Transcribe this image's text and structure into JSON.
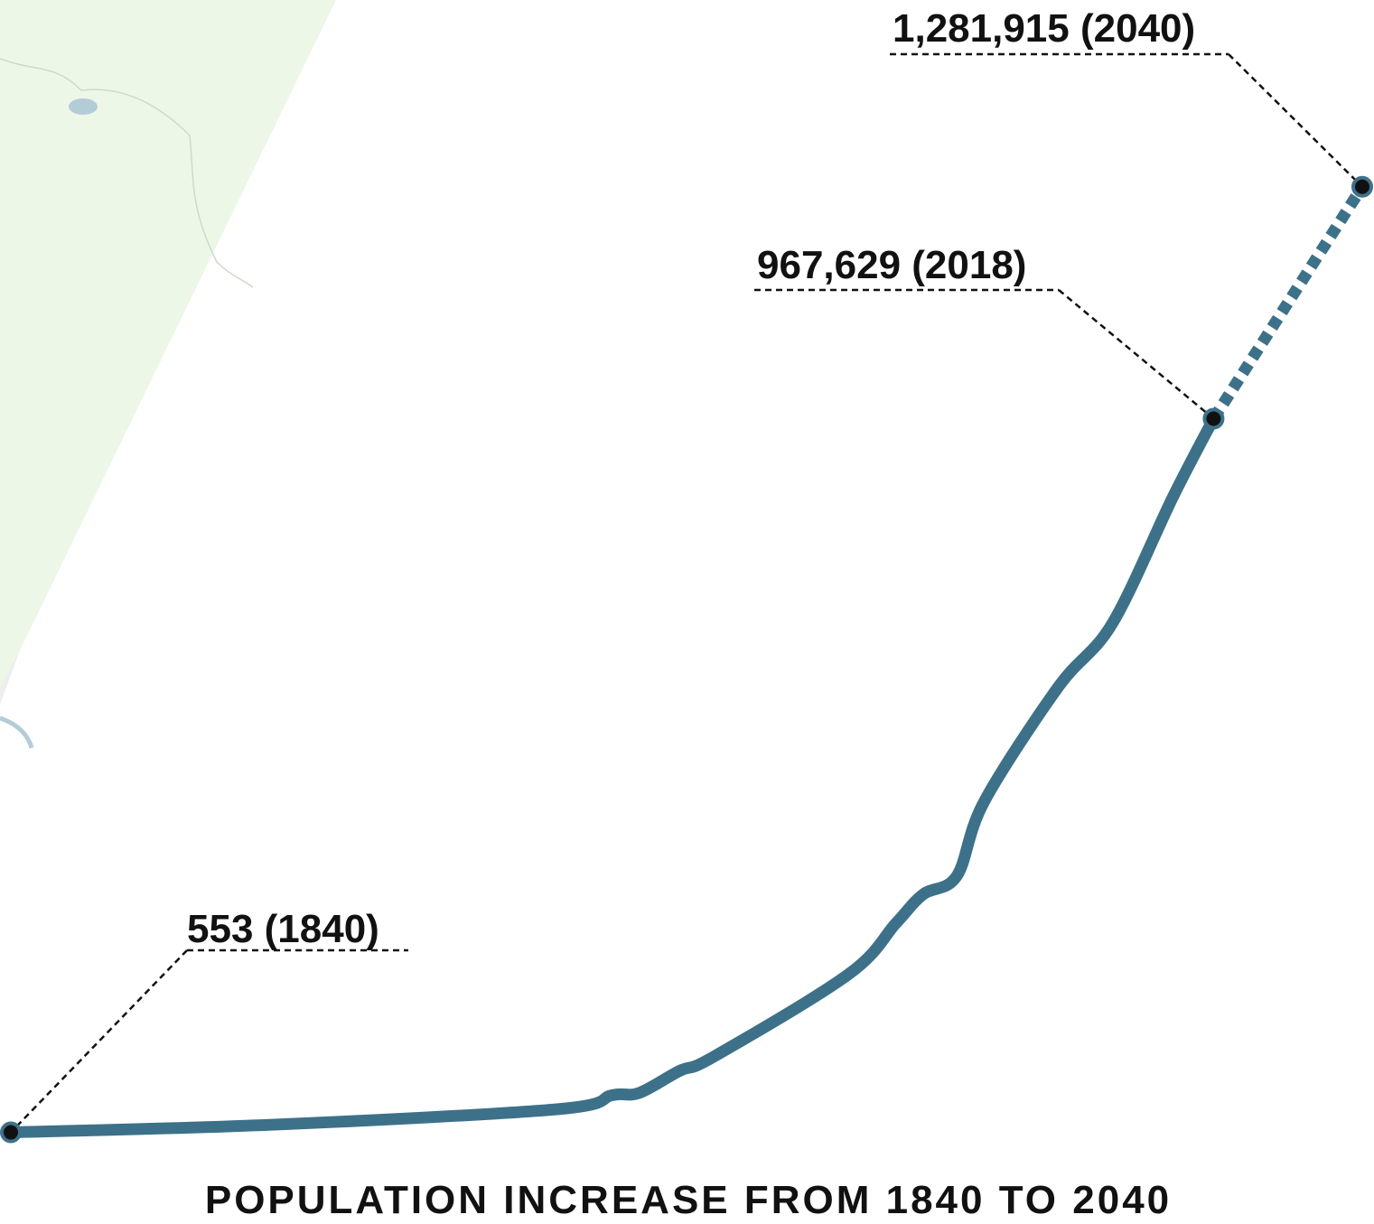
{
  "chart_data": {
    "type": "line",
    "title": "POPULATION INCREASE FROM 1840 TO 2040",
    "xlim": [
      1840,
      2040
    ],
    "ylim": [
      0,
      1300000
    ],
    "series": [
      {
        "color": "#3d7189",
        "style": "solid",
        "x": [
          1840,
          1879,
          1921,
          1929,
          1933,
          1939,
          1944,
          1964,
          1971,
          1975,
          1980,
          1984,
          1995,
          2003,
          2012,
          2018
        ],
        "values": [
          553,
          11000,
          32000,
          51000,
          54000,
          84000,
          103000,
          215000,
          284000,
          323000,
          348000,
          448000,
          604000,
          690000,
          862000,
          967629
        ]
      },
      {
        "color": "#3d7189",
        "style": "dashed",
        "x": [
          2018,
          2040
        ],
        "values": [
          967629,
          1281915
        ]
      }
    ],
    "annotations": [
      "553 (1840)",
      "967,629 (2018)",
      "1,281,915 (2040)"
    ]
  }
}
